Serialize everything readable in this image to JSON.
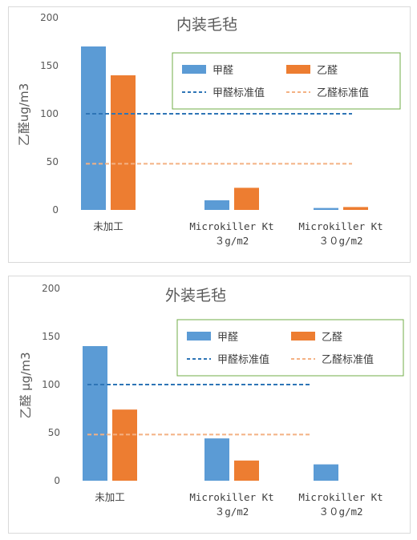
{
  "chart_data": [
    {
      "type": "bar",
      "title": "内装毛毡",
      "ylabel": "乙醛ug/m3",
      "ylim": [
        0,
        200
      ],
      "yticks": [
        0,
        50,
        100,
        150,
        200
      ],
      "categories": [
        [
          "未加工"
        ],
        [
          "Microkiller Kt",
          "３g/m2"
        ],
        [
          "Microkiller Kt",
          "３０g/m2"
        ]
      ],
      "series": [
        {
          "name": "甲醛",
          "values": [
            170,
            10,
            2
          ],
          "color": "#5b9bd5"
        },
        {
          "name": "乙醛",
          "values": [
            140,
            23,
            3
          ],
          "color": "#ed7d31"
        }
      ],
      "reference_lines": [
        {
          "name": "甲醛标准值",
          "value": 100,
          "color": "#2e75b6",
          "style": "dashed"
        },
        {
          "name": "乙醛标准值",
          "value": 48,
          "color": "#f4b183",
          "style": "dashed"
        }
      ],
      "legend": "top-right",
      "legend_border_color": "#70ad47",
      "grid": false
    },
    {
      "type": "bar",
      "title": "外装毛毡",
      "ylabel": "乙醛 μg/m3",
      "ylim": [
        0,
        200
      ],
      "yticks": [
        0,
        50,
        100,
        150,
        200
      ],
      "categories": [
        [
          "未加工"
        ],
        [
          "Microkiller Kt",
          "３g/m2"
        ],
        [
          "Microkiller Kt",
          "３０g/m2"
        ]
      ],
      "series": [
        {
          "name": "甲醛",
          "values": [
            140,
            44,
            17
          ],
          "color": "#5b9bd5"
        },
        {
          "name": "乙醛",
          "values": [
            74,
            21,
            0
          ],
          "color": "#ed7d31"
        }
      ],
      "reference_lines": [
        {
          "name": "甲醛标准值",
          "value": 100,
          "color": "#2e75b6",
          "style": "dashed"
        },
        {
          "name": "乙醛标准值",
          "value": 48,
          "color": "#f4b183",
          "style": "dashed"
        }
      ],
      "legend": "top-right",
      "legend_border_color": "#70ad47",
      "grid": false
    }
  ]
}
